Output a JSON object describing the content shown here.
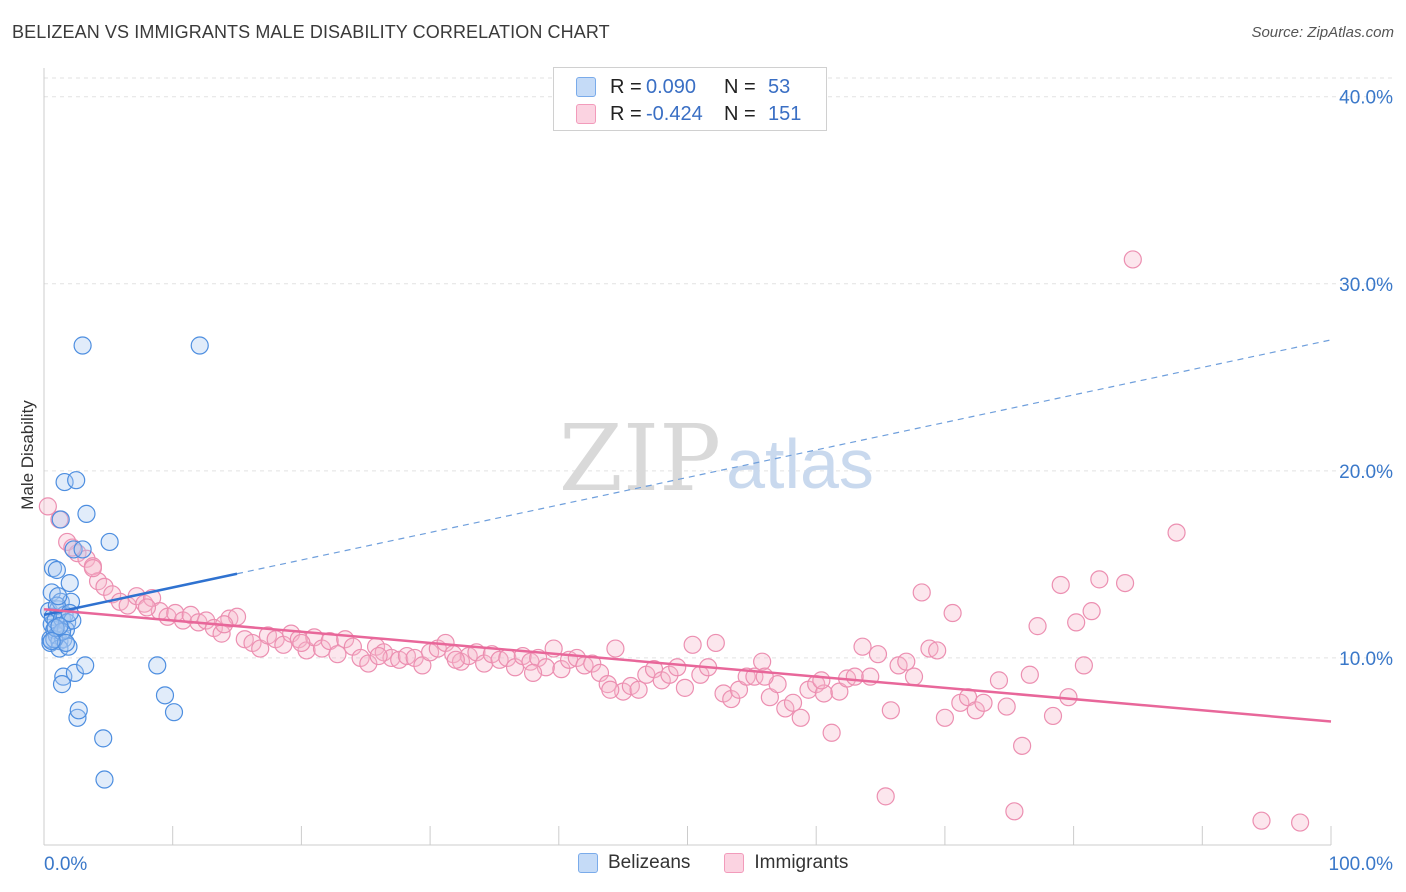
{
  "title": "BELIZEAN VS IMMIGRANTS MALE DISABILITY CORRELATION CHART",
  "source": "Source: ZipAtlas.com",
  "watermark": {
    "zip": "ZIP",
    "atlas": "atlas"
  },
  "legend": {
    "rows": [
      {
        "r_label": "R =",
        "r_value": "0.090",
        "n_label": "N =",
        "n_value": "53",
        "color": "#7aabea"
      },
      {
        "r_label": "R =",
        "r_value": "-0.424",
        "n_label": "N =",
        "n_value": "151",
        "color": "#f29bbb"
      }
    ]
  },
  "bottom_legend": [
    {
      "label": "Belizeans",
      "color": "#7aabea"
    },
    {
      "label": "Immigrants",
      "color": "#f29bbb"
    }
  ],
  "chart_data": {
    "type": "scatter",
    "title": "BELIZEAN VS IMMIGRANTS MALE DISABILITY CORRELATION CHART",
    "xlabel": "",
    "ylabel": "Male Disability",
    "xlim": [
      0,
      100
    ],
    "ylim": [
      0,
      41
    ],
    "x_tick_labels": [
      "0.0%",
      "100.0%"
    ],
    "y_ticks": [
      10,
      20,
      30,
      40
    ],
    "y_tick_labels": [
      "10.0%",
      "20.0%",
      "30.0%",
      "40.0%"
    ],
    "grid": true,
    "legend_position": "top-center",
    "series": [
      {
        "name": "Belizeans",
        "color": "#7aabea",
        "trend": {
          "x0": 0,
          "y0": 12.3,
          "x1": 15,
          "y1": 14.5,
          "dashed_to_x": 100,
          "dashed_to_y": 27.0
        },
        "points": [
          [
            0.4,
            12.5
          ],
          [
            0.5,
            11.0
          ],
          [
            0.6,
            11.8
          ],
          [
            0.7,
            12.2
          ],
          [
            0.8,
            11.5
          ],
          [
            0.6,
            13.5
          ],
          [
            0.7,
            14.8
          ],
          [
            0.5,
            10.8
          ],
          [
            0.9,
            12.0
          ],
          [
            1.0,
            11.2
          ],
          [
            1.1,
            12.6
          ],
          [
            1.2,
            10.9
          ],
          [
            1.0,
            14.7
          ],
          [
            1.3,
            13.0
          ],
          [
            1.4,
            12.1
          ],
          [
            1.5,
            11.0
          ],
          [
            1.2,
            10.5
          ],
          [
            1.6,
            12.3
          ],
          [
            1.8,
            11.9
          ],
          [
            1.7,
            11.5
          ],
          [
            2.0,
            14.0
          ],
          [
            2.2,
            12.0
          ],
          [
            2.1,
            13.0
          ],
          [
            1.9,
            10.6
          ],
          [
            1.5,
            9.0
          ],
          [
            1.4,
            8.6
          ],
          [
            1.6,
            19.4
          ],
          [
            2.4,
            9.2
          ],
          [
            2.5,
            19.5
          ],
          [
            1.3,
            17.4
          ],
          [
            2.3,
            15.8
          ],
          [
            2.6,
            6.8
          ],
          [
            2.7,
            7.2
          ],
          [
            3.0,
            15.8
          ],
          [
            3.2,
            9.6
          ],
          [
            3.3,
            17.7
          ],
          [
            3.0,
            26.7
          ],
          [
            4.6,
            5.7
          ],
          [
            4.7,
            3.5
          ],
          [
            5.1,
            16.2
          ],
          [
            8.8,
            9.6
          ],
          [
            9.4,
            8.0
          ],
          [
            10.1,
            7.1
          ],
          [
            12.1,
            26.7
          ],
          [
            0.8,
            11.0
          ],
          [
            1.0,
            12.8
          ],
          [
            1.4,
            11.4
          ],
          [
            0.9,
            11.6
          ],
          [
            1.1,
            13.3
          ],
          [
            1.7,
            10.8
          ],
          [
            2.0,
            12.4
          ],
          [
            0.6,
            10.9
          ],
          [
            1.2,
            11.7
          ]
        ]
      },
      {
        "name": "Immigrants",
        "color": "#f29bbb",
        "trend": {
          "x0": 0,
          "y0": 12.6,
          "x1": 100,
          "y1": 6.6
        },
        "points": [
          [
            0.3,
            18.1
          ],
          [
            1.2,
            17.4
          ],
          [
            1.8,
            16.2
          ],
          [
            2.6,
            15.6
          ],
          [
            3.3,
            15.3
          ],
          [
            3.8,
            14.9
          ],
          [
            4.2,
            14.1
          ],
          [
            4.7,
            13.8
          ],
          [
            5.3,
            13.4
          ],
          [
            5.9,
            13.0
          ],
          [
            6.5,
            12.8
          ],
          [
            7.2,
            13.3
          ],
          [
            7.8,
            12.9
          ],
          [
            8.4,
            13.2
          ],
          [
            9.0,
            12.5
          ],
          [
            9.6,
            12.2
          ],
          [
            10.2,
            12.4
          ],
          [
            10.8,
            12.0
          ],
          [
            11.4,
            12.3
          ],
          [
            12.0,
            11.9
          ],
          [
            12.6,
            12.0
          ],
          [
            13.2,
            11.6
          ],
          [
            13.8,
            11.3
          ],
          [
            14.4,
            12.1
          ],
          [
            15.0,
            12.2
          ],
          [
            15.6,
            11.0
          ],
          [
            16.2,
            10.8
          ],
          [
            16.8,
            10.5
          ],
          [
            17.4,
            11.2
          ],
          [
            18.0,
            11.0
          ],
          [
            18.6,
            10.7
          ],
          [
            19.2,
            11.3
          ],
          [
            19.8,
            11.0
          ],
          [
            20.4,
            10.4
          ],
          [
            21.0,
            11.1
          ],
          [
            21.6,
            10.5
          ],
          [
            22.2,
            10.9
          ],
          [
            22.8,
            10.2
          ],
          [
            23.4,
            11.0
          ],
          [
            24.0,
            10.6
          ],
          [
            24.6,
            10.0
          ],
          [
            25.2,
            9.7
          ],
          [
            25.8,
            10.6
          ],
          [
            26.4,
            10.3
          ],
          [
            27.0,
            10.0
          ],
          [
            27.6,
            9.9
          ],
          [
            28.2,
            10.1
          ],
          [
            28.8,
            10.0
          ],
          [
            29.4,
            9.6
          ],
          [
            30.0,
            10.3
          ],
          [
            30.6,
            10.5
          ],
          [
            31.2,
            10.8
          ],
          [
            31.8,
            10.2
          ],
          [
            32.4,
            9.8
          ],
          [
            33.0,
            10.1
          ],
          [
            33.6,
            10.3
          ],
          [
            34.2,
            9.7
          ],
          [
            34.8,
            10.2
          ],
          [
            35.4,
            9.9
          ],
          [
            36.0,
            10.0
          ],
          [
            36.6,
            9.5
          ],
          [
            37.2,
            10.1
          ],
          [
            37.8,
            9.8
          ],
          [
            38.4,
            10.0
          ],
          [
            39.0,
            9.5
          ],
          [
            39.6,
            10.5
          ],
          [
            40.2,
            9.4
          ],
          [
            40.8,
            9.9
          ],
          [
            41.4,
            10.0
          ],
          [
            42.0,
            9.6
          ],
          [
            42.6,
            9.7
          ],
          [
            43.2,
            9.2
          ],
          [
            43.8,
            8.6
          ],
          [
            44.4,
            10.5
          ],
          [
            45.0,
            8.2
          ],
          [
            45.6,
            8.5
          ],
          [
            46.2,
            8.3
          ],
          [
            46.8,
            9.1
          ],
          [
            47.4,
            9.4
          ],
          [
            48.0,
            8.8
          ],
          [
            48.6,
            9.1
          ],
          [
            49.2,
            9.5
          ],
          [
            49.8,
            8.4
          ],
          [
            50.4,
            10.7
          ],
          [
            51.0,
            9.1
          ],
          [
            51.6,
            9.5
          ],
          [
            52.2,
            10.8
          ],
          [
            52.8,
            8.1
          ],
          [
            53.4,
            7.8
          ],
          [
            54.0,
            8.3
          ],
          [
            54.6,
            9.0
          ],
          [
            55.2,
            9.0
          ],
          [
            55.8,
            9.8
          ],
          [
            56.4,
            7.9
          ],
          [
            57.0,
            8.6
          ],
          [
            57.6,
            7.3
          ],
          [
            58.2,
            7.6
          ],
          [
            58.8,
            6.8
          ],
          [
            59.4,
            8.3
          ],
          [
            60.0,
            8.6
          ],
          [
            60.6,
            8.1
          ],
          [
            61.2,
            6.0
          ],
          [
            61.8,
            8.2
          ],
          [
            62.4,
            8.9
          ],
          [
            63.0,
            9.0
          ],
          [
            63.6,
            10.6
          ],
          [
            64.2,
            9.0
          ],
          [
            64.8,
            10.2
          ],
          [
            65.4,
            2.6
          ],
          [
            65.8,
            7.2
          ],
          [
            66.4,
            9.6
          ],
          [
            67.0,
            9.8
          ],
          [
            67.6,
            9.0
          ],
          [
            68.2,
            13.5
          ],
          [
            68.8,
            10.5
          ],
          [
            69.4,
            10.4
          ],
          [
            70.0,
            6.8
          ],
          [
            70.6,
            12.4
          ],
          [
            71.2,
            7.6
          ],
          [
            71.8,
            7.9
          ],
          [
            72.4,
            7.2
          ],
          [
            73.0,
            7.6
          ],
          [
            74.2,
            8.8
          ],
          [
            74.8,
            7.4
          ],
          [
            75.4,
            1.8
          ],
          [
            76.0,
            5.3
          ],
          [
            76.6,
            9.1
          ],
          [
            77.2,
            11.7
          ],
          [
            78.4,
            6.9
          ],
          [
            79.0,
            13.9
          ],
          [
            79.6,
            7.9
          ],
          [
            80.2,
            11.9
          ],
          [
            80.8,
            9.6
          ],
          [
            81.4,
            12.5
          ],
          [
            82.0,
            14.2
          ],
          [
            84.0,
            14.0
          ],
          [
            84.6,
            31.3
          ],
          [
            88.0,
            16.7
          ],
          [
            94.6,
            1.3
          ],
          [
            97.6,
            1.2
          ],
          [
            60.4,
            8.8
          ],
          [
            56.0,
            9.0
          ],
          [
            44.0,
            8.3
          ],
          [
            38.0,
            9.2
          ],
          [
            32.0,
            9.9
          ],
          [
            26.0,
            10.1
          ],
          [
            20.0,
            10.8
          ],
          [
            14.0,
            11.8
          ],
          [
            8.0,
            12.7
          ],
          [
            3.8,
            14.8
          ],
          [
            2.2,
            15.9
          ]
        ]
      }
    ]
  }
}
